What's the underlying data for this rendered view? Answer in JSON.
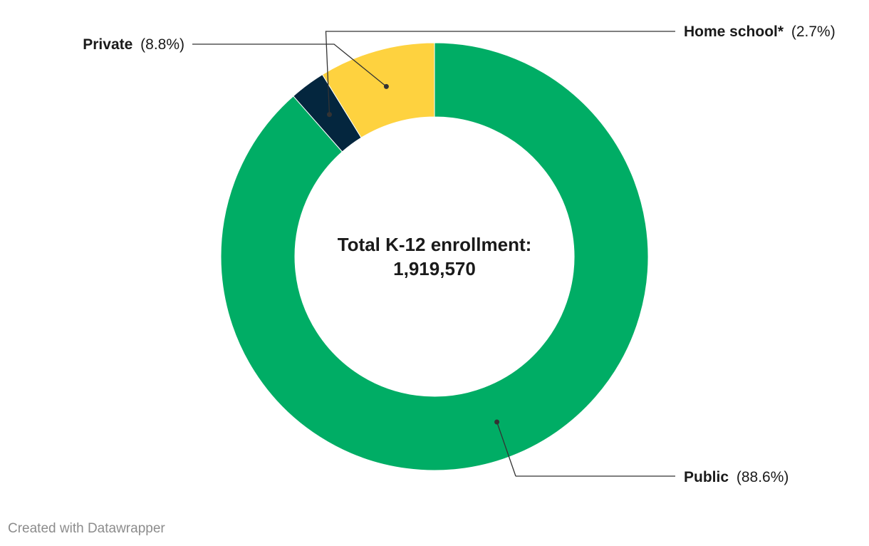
{
  "chart_data": {
    "type": "pie",
    "variant": "donut",
    "center_label": {
      "line1": "Total K-12 enrollment:",
      "line2": "1,919,570"
    },
    "slices": [
      {
        "name": "Public",
        "pct_label": "(88.6%)",
        "value": 88.6,
        "color": "#00ad65"
      },
      {
        "name": "Home school*",
        "pct_label": "(2.7%)",
        "value": 2.7,
        "color": "#04263e"
      },
      {
        "name": "Private",
        "pct_label": "(8.8%)",
        "value": 8.8,
        "color": "#fed23f"
      }
    ]
  },
  "credit": "Created with Datawrapper"
}
